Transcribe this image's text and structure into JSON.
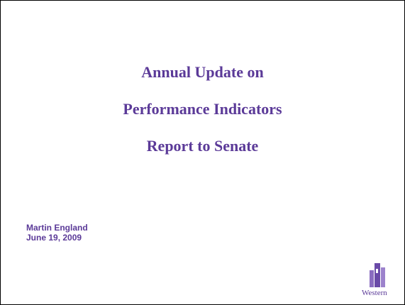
{
  "slide": {
    "title_lines": [
      "Annual Update on",
      "Performance Indicators",
      "Report to Senate"
    ],
    "author": "Martin England",
    "date": "June 19, 2009",
    "logo_text": "Western"
  }
}
